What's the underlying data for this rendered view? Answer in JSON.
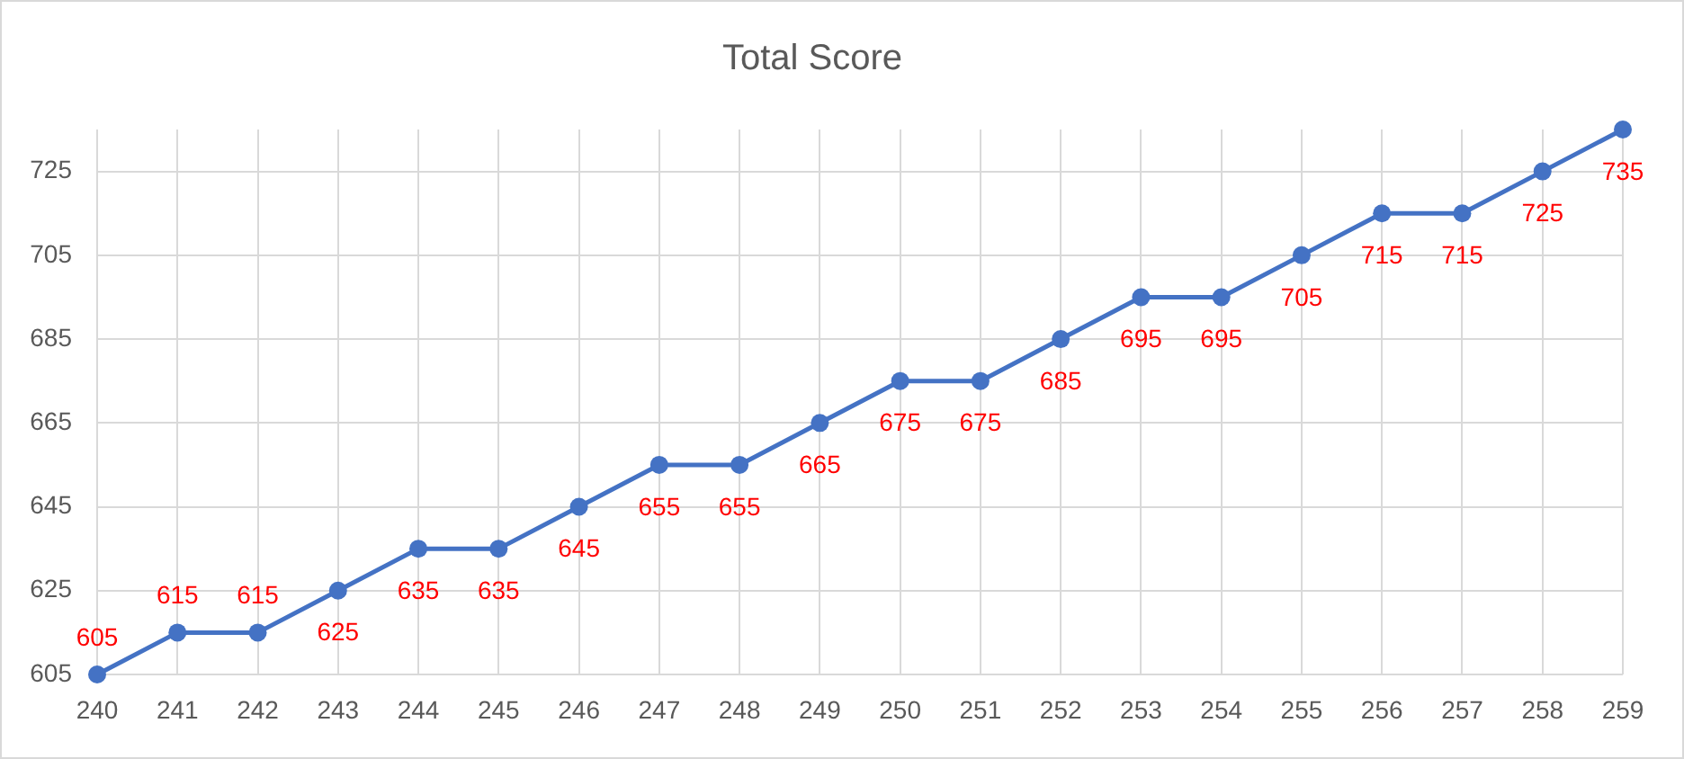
{
  "chart_data": {
    "type": "line",
    "title": "Total Score",
    "x": [
      240,
      241,
      242,
      243,
      244,
      245,
      246,
      247,
      248,
      249,
      250,
      251,
      252,
      253,
      254,
      255,
      256,
      257,
      258,
      259
    ],
    "values": [
      605,
      615,
      615,
      625,
      635,
      635,
      645,
      655,
      655,
      665,
      675,
      675,
      685,
      695,
      695,
      705,
      715,
      715,
      725,
      735
    ],
    "color": "#4472c4",
    "xlim": [
      240,
      259
    ],
    "xticks": [
      240,
      241,
      242,
      243,
      244,
      245,
      246,
      247,
      248,
      249,
      250,
      251,
      252,
      253,
      254,
      255,
      256,
      257,
      258,
      259
    ],
    "ylim": [
      605,
      735
    ],
    "yticks": [
      605,
      625,
      645,
      665,
      685,
      705,
      725
    ],
    "grid": true,
    "marker": "circle",
    "data_labels": true
  }
}
